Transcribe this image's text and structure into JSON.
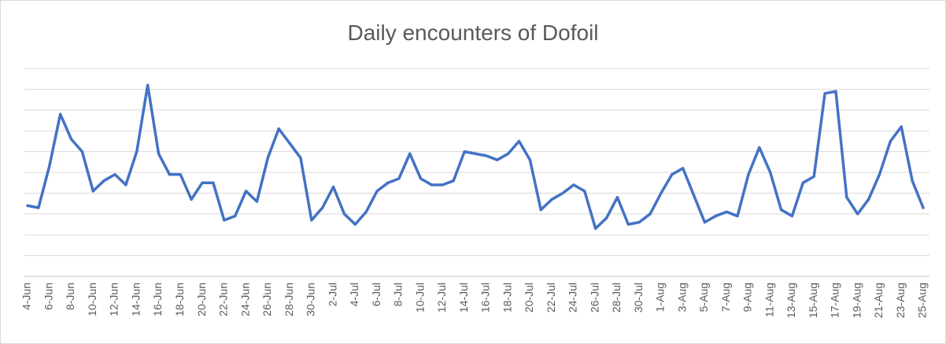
{
  "chart_data": {
    "type": "line",
    "title": "Daily encounters of Dofoil",
    "xlabel": "",
    "ylabel": "",
    "x": [
      "4-Jun",
      "5-Jun",
      "6-Jun",
      "7-Jun",
      "8-Jun",
      "9-Jun",
      "10-Jun",
      "11-Jun",
      "12-Jun",
      "13-Jun",
      "14-Jun",
      "15-Jun",
      "16-Jun",
      "17-Jun",
      "18-Jun",
      "19-Jun",
      "20-Jun",
      "21-Jun",
      "22-Jun",
      "23-Jun",
      "24-Jun",
      "25-Jun",
      "26-Jun",
      "27-Jun",
      "28-Jun",
      "29-Jun",
      "30-Jun",
      "1-Jul",
      "2-Jul",
      "3-Jul",
      "4-Jul",
      "5-Jul",
      "6-Jul",
      "7-Jul",
      "8-Jul",
      "9-Jul",
      "10-Jul",
      "11-Jul",
      "12-Jul",
      "13-Jul",
      "14-Jul",
      "15-Jul",
      "16-Jul",
      "17-Jul",
      "18-Jul",
      "19-Jul",
      "20-Jul",
      "21-Jul",
      "22-Jul",
      "23-Jul",
      "24-Jul",
      "25-Jul",
      "26-Jul",
      "27-Jul",
      "28-Jul",
      "29-Jul",
      "30-Jul",
      "31-Jul",
      "1-Aug",
      "2-Aug",
      "3-Aug",
      "4-Aug",
      "5-Aug",
      "6-Aug",
      "7-Aug",
      "8-Aug",
      "9-Aug",
      "10-Aug",
      "11-Aug",
      "12-Aug",
      "13-Aug",
      "14-Aug",
      "15-Aug",
      "16-Aug",
      "17-Aug",
      "18-Aug",
      "19-Aug",
      "20-Aug",
      "21-Aug",
      "22-Aug",
      "23-Aug",
      "24-Aug",
      "25-Aug"
    ],
    "tick_labels": [
      "4-Jun",
      "6-Jun",
      "8-Jun",
      "10-Jun",
      "12-Jun",
      "14-Jun",
      "16-Jun",
      "18-Jun",
      "20-Jun",
      "22-Jun",
      "24-Jun",
      "26-Jun",
      "28-Jun",
      "30-Jun",
      "2-Jul",
      "4-Jul",
      "6-Jul",
      "8-Jul",
      "10-Jul",
      "12-Jul",
      "14-Jul",
      "16-Jul",
      "18-Jul",
      "20-Jul",
      "22-Jul",
      "24-Jul",
      "26-Jul",
      "28-Jul",
      "30-Jul",
      "1-Aug",
      "3-Aug",
      "5-Aug",
      "7-Aug",
      "9-Aug",
      "11-Aug",
      "13-Aug",
      "15-Aug",
      "17-Aug",
      "19-Aug",
      "21-Aug",
      "23-Aug",
      "25-Aug"
    ],
    "series": [
      {
        "name": "",
        "color": "#4472c4",
        "values": [
          3.4,
          3.3,
          5.3,
          7.8,
          6.6,
          6.0,
          4.1,
          4.6,
          4.9,
          4.4,
          6.0,
          9.2,
          5.9,
          4.9,
          4.9,
          3.7,
          4.5,
          4.5,
          2.7,
          2.9,
          4.1,
          3.6,
          5.7,
          7.1,
          6.4,
          5.7,
          2.7,
          3.3,
          4.3,
          3.0,
          2.5,
          3.1,
          4.1,
          4.5,
          4.7,
          5.9,
          4.7,
          4.4,
          4.4,
          4.6,
          6.0,
          5.9,
          5.8,
          5.6,
          5.9,
          6.5,
          5.6,
          3.2,
          3.7,
          4.0,
          4.4,
          4.1,
          2.3,
          2.8,
          3.8,
          2.5,
          2.6,
          3.0,
          4.0,
          4.9,
          5.2,
          3.9,
          2.6,
          2.9,
          3.1,
          2.9,
          4.9,
          6.2,
          5.0,
          3.2,
          2.9,
          4.5,
          4.8,
          8.8,
          8.9,
          3.8,
          3.0,
          3.7,
          4.9,
          6.5,
          7.2,
          4.6,
          3.3
        ]
      }
    ],
    "ylim": [
      0,
      10
    ],
    "y_gridline_step": 1,
    "y_tick_labels_visible": false,
    "grid": true,
    "legend": "none"
  }
}
